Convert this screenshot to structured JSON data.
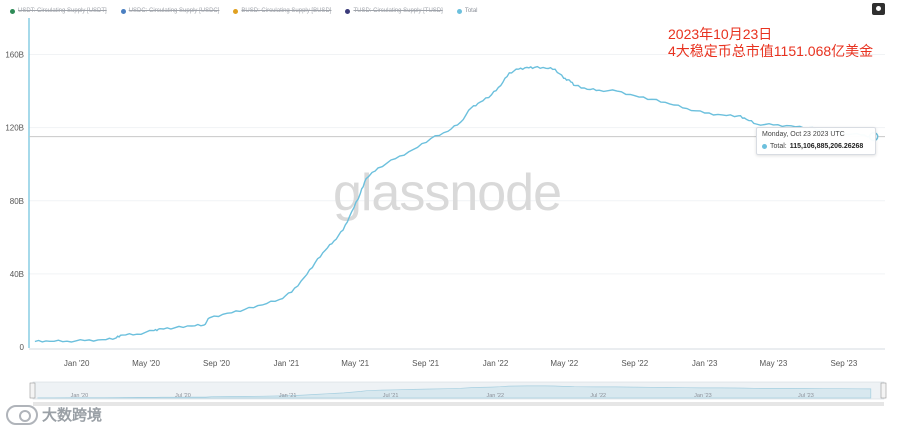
{
  "legend": [
    {
      "label": "USDT: Circulating Supply [USDT]",
      "color": "#2e8b57",
      "hidden": true
    },
    {
      "label": "USDC: Circulating Supply [USDC]",
      "color": "#4a7fc1",
      "hidden": true
    },
    {
      "label": "BUSD: Circulating Supply [BUSD]",
      "color": "#e0a020",
      "hidden": true
    },
    {
      "label": "TUSD: Circulating Supply [TUSD]",
      "color": "#3a3a7a",
      "hidden": true
    },
    {
      "label": "Total",
      "color": "#6cc0dd",
      "hidden": false
    }
  ],
  "toolbar": {
    "camera_icon": "camera-icon"
  },
  "annotation": {
    "line1": "2023年10月23日",
    "line2": "4大稳定币总市值1151.068亿美金"
  },
  "tooltip": {
    "date": "Monday, Oct 23 2023 UTC",
    "series_label": "Total:",
    "value": "115,106,885,206.26268"
  },
  "watermark": {
    "text": "大数跨境"
  },
  "colors": {
    "series": "#6cc0dd",
    "axis": "#6cc0dd",
    "crosshair": "#c8c8c8",
    "annotation": "#e8321f"
  },
  "chart_data": {
    "type": "line",
    "title": "",
    "xlabel": "",
    "ylabel": "",
    "ylim": [
      0,
      180
    ],
    "y_unit": "B",
    "y_ticks": [
      0,
      40,
      80,
      120,
      160
    ],
    "y_tick_labels": [
      "0",
      "40B",
      "80B",
      "120B",
      "160B"
    ],
    "x_ticks": [
      "2020-01-01",
      "2020-05-01",
      "2020-09-01",
      "2021-01-01",
      "2021-05-01",
      "2021-09-01",
      "2022-01-01",
      "2022-05-01",
      "2022-09-01",
      "2023-01-01",
      "2023-05-01",
      "2023-09-01"
    ],
    "x_tick_labels": [
      "Jan '20",
      "May '20",
      "Sep '20",
      "Jan '21",
      "May '21",
      "Sep '21",
      "Jan '22",
      "May '22",
      "Sep '22",
      "Jan '23",
      "May '23",
      "Sep '23"
    ],
    "xlim": [
      "2019-10-15",
      "2023-11-10"
    ],
    "navigator_tick_labels": [
      "Jan '20",
      "Jul '20",
      "Jan '21",
      "Jul '21",
      "Jan '22",
      "Jul '22",
      "Jan '23",
      "Jul '23"
    ],
    "navigator_ticks": [
      "2020-01-01",
      "2020-07-01",
      "2021-01-01",
      "2021-07-01",
      "2022-01-01",
      "2022-07-01",
      "2023-01-01",
      "2023-07-01"
    ],
    "series": [
      {
        "name": "Total",
        "x": [
          "2019-10-20",
          "2019-11-15",
          "2019-12-15",
          "2020-01-15",
          "2020-02-15",
          "2020-03-10",
          "2020-03-20",
          "2020-04-15",
          "2020-05-15",
          "2020-05-25",
          "2020-06-20",
          "2020-07-20",
          "2020-08-10",
          "2020-08-20",
          "2020-09-20",
          "2020-10-20",
          "2020-11-20",
          "2020-12-20",
          "2021-01-10",
          "2021-02-01",
          "2021-02-20",
          "2021-03-10",
          "2021-03-25",
          "2021-04-10",
          "2021-04-25",
          "2021-05-10",
          "2021-05-20",
          "2021-06-10",
          "2021-07-10",
          "2021-08-10",
          "2021-09-10",
          "2021-10-10",
          "2021-11-01",
          "2021-11-20",
          "2021-12-05",
          "2021-12-25",
          "2022-01-10",
          "2022-01-25",
          "2022-02-10",
          "2022-02-25",
          "2022-03-10",
          "2022-03-30",
          "2022-04-15",
          "2022-04-30",
          "2022-05-10",
          "2022-05-20",
          "2022-06-10",
          "2022-07-01",
          "2022-08-01",
          "2022-09-01",
          "2022-10-01",
          "2022-11-01",
          "2022-12-01",
          "2023-01-01",
          "2023-02-01",
          "2023-03-01",
          "2023-03-15",
          "2023-04-01",
          "2023-05-01",
          "2023-06-01",
          "2023-07-01",
          "2023-08-01",
          "2023-09-01",
          "2023-10-01",
          "2023-10-23"
        ],
        "values": [
          3.0,
          3.1,
          3.2,
          3.5,
          4.0,
          5.0,
          6.5,
          7.0,
          9.0,
          10.0,
          10.5,
          11.5,
          12.0,
          16.0,
          18.5,
          20.5,
          23.0,
          26.0,
          30.0,
          38.0,
          46.0,
          53.0,
          58.0,
          64.0,
          74.0,
          84.0,
          92.0,
          98.0,
          103.0,
          108.0,
          114.0,
          118.0,
          123.0,
          131.0,
          134.0,
          138.0,
          143.0,
          150.0,
          152.0,
          153.0,
          153.0,
          152.5,
          152.0,
          147.0,
          146.0,
          143.0,
          141.0,
          140.5,
          140.0,
          137.5,
          135.5,
          133.0,
          130.5,
          128.0,
          127.0,
          126.5,
          124.5,
          122.0,
          121.5,
          121.0,
          120.0,
          118.0,
          117.0,
          116.0,
          115.1
        ]
      }
    ],
    "hover": {
      "x": "2023-10-23",
      "value": 115.106885206
    }
  }
}
